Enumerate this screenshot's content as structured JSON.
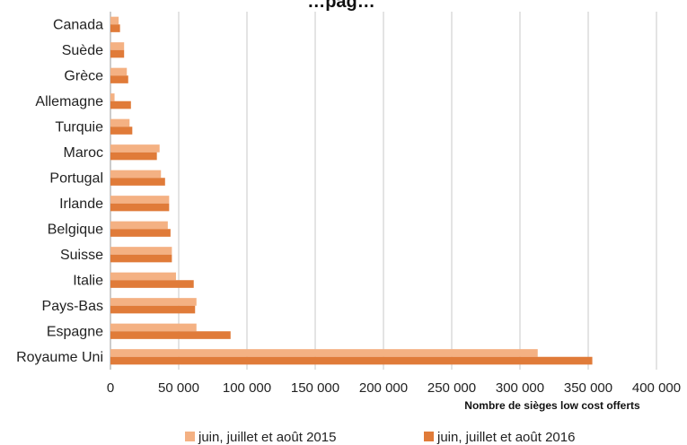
{
  "chart_data": {
    "type": "bar",
    "orientation": "horizontal",
    "title": "",
    "title_partial": "…pag…",
    "xlabel": "Nombre de sièges low cost offerts",
    "ylabel": "",
    "xlim": [
      0,
      400000
    ],
    "xticks": [
      0,
      50000,
      100000,
      150000,
      200000,
      250000,
      300000,
      350000,
      400000
    ],
    "xtick_labels": [
      "0",
      "50 000",
      "100 000",
      "150 000",
      "200 000",
      "250 000",
      "300 000",
      "350 000",
      "400 000"
    ],
    "grid": "vertical",
    "legend_position": "bottom",
    "categories": [
      "Royaume Uni",
      "Espagne",
      "Pays-Bas",
      "Italie",
      "Suisse",
      "Belgique",
      "Irlande",
      "Portugal",
      "Maroc",
      "Turquie",
      "Allemagne",
      "Grèce",
      "Suède",
      "Canada"
    ],
    "series": [
      {
        "name": "juin, juillet et août 2015",
        "color": "#f4b183",
        "values": [
          313000,
          63000,
          63000,
          48000,
          45000,
          42000,
          43000,
          37000,
          36000,
          14000,
          3000,
          12000,
          10000,
          6000
        ]
      },
      {
        "name": "juin, juillet et août 2016",
        "color": "#e07b39",
        "values": [
          353000,
          88000,
          62000,
          61000,
          45000,
          44000,
          43000,
          40000,
          34000,
          16000,
          15000,
          13000,
          10000,
          7000
        ]
      }
    ]
  }
}
